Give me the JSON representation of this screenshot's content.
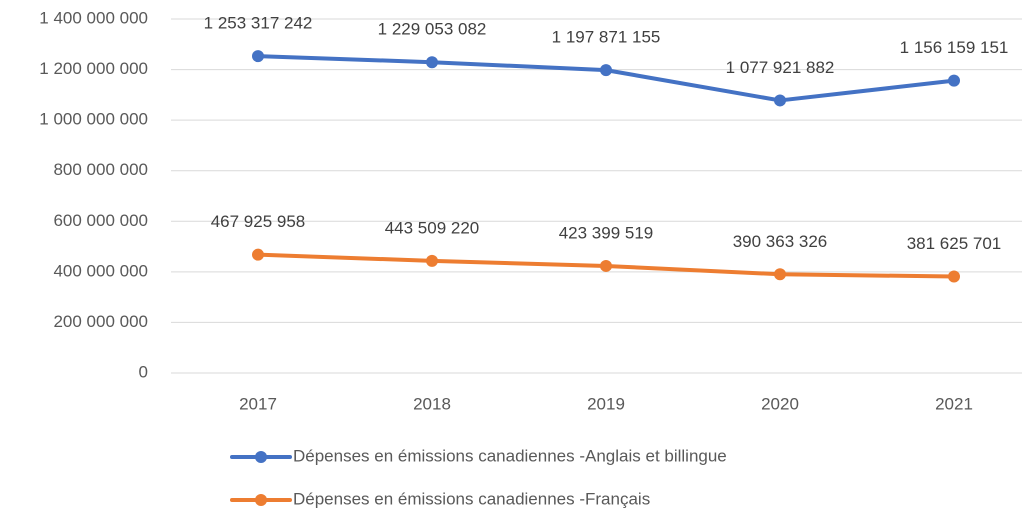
{
  "chart_data": {
    "type": "line",
    "categories": [
      "2017",
      "2018",
      "2019",
      "2020",
      "2021"
    ],
    "series": [
      {
        "name": "Dépenses en émissions canadiennes -Anglais et billingue",
        "color": "#4472c4",
        "values": [
          1253317242,
          1229053082,
          1197871155,
          1077921882,
          1156159151
        ],
        "value_labels": [
          "1 253 317 242",
          "1 229 053 082",
          "1 197 871 155",
          "1 077 921 882",
          "1 156 159 151"
        ]
      },
      {
        "name": "Dépenses en émissions canadiennes -Français",
        "color": "#ed7d31",
        "values": [
          467925958,
          443509220,
          423399519,
          390363326,
          381625701
        ],
        "value_labels": [
          "467 925 958",
          "443 509 220",
          "423 399 519",
          "390 363 326",
          "381 625 701"
        ]
      }
    ],
    "ylim": [
      0,
      1400000000
    ],
    "yticks": [
      0,
      {
        "value": 200000000,
        "label": "200 000 000"
      },
      {
        "value": 400000000,
        "label": "400 000 000"
      },
      {
        "value": 600000000,
        "label": "600 000 000"
      },
      {
        "value": 800000000,
        "label": "800 000 000"
      },
      {
        "value": 1000000000,
        "label": "1 000 000 000"
      },
      {
        "value": 1200000000,
        "label": "1 200 000 000"
      },
      {
        "value": 1400000000,
        "label": "1 400 000 000"
      }
    ],
    "grid": true,
    "legend": "bottom"
  }
}
